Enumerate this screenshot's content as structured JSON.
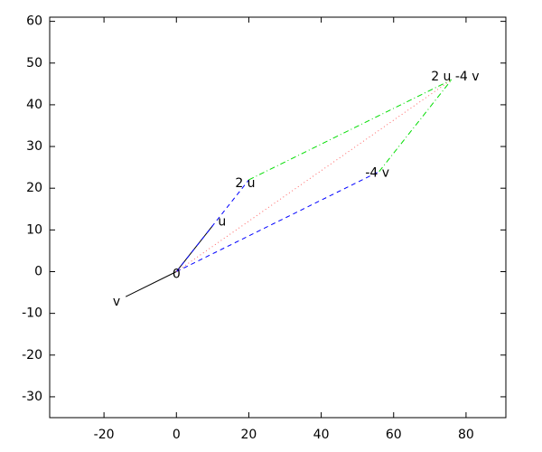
{
  "chart_data": {
    "type": "vector",
    "origin_label": "0",
    "xlim": [
      -35,
      91
    ],
    "ylim": [
      -35,
      61
    ],
    "xticks": [
      -20,
      0,
      20,
      40,
      60,
      80
    ],
    "yticks": [
      -30,
      -20,
      -10,
      0,
      10,
      20,
      30,
      40,
      50,
      60
    ],
    "segments": [
      {
        "label": "u",
        "x0": 0,
        "y0": 0,
        "x": 10,
        "y": 11,
        "color": "#000000",
        "dash": "solid"
      },
      {
        "label": "v",
        "x0": 0,
        "y0": 0,
        "x": -14,
        "y": -6,
        "color": "#000000",
        "dash": "solid"
      },
      {
        "label": "2 u",
        "x0": 0,
        "y0": 0,
        "x": 20,
        "y": 22,
        "color": "#0000ff",
        "dash": "dashed"
      },
      {
        "label": "-4 v",
        "x0": 0,
        "y0": 0,
        "x": 56,
        "y": 24,
        "color": "#0000ff",
        "dash": "dashed"
      },
      {
        "x0": 20,
        "y0": 22,
        "x": 76,
        "y": 46,
        "color": "#00dd00",
        "dash": "dashdot"
      },
      {
        "x0": 56,
        "y0": 24,
        "x": 76,
        "y": 46,
        "color": "#00dd00",
        "dash": "dashdot"
      },
      {
        "label": "2 u -4 v",
        "x0": 0,
        "y0": 0,
        "x": 76,
        "y": 46,
        "color": "#ff6666",
        "dash": "dotted"
      }
    ]
  }
}
